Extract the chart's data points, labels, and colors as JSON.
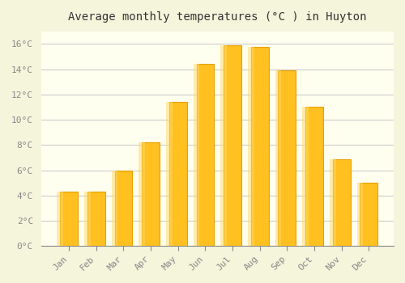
{
  "title": "Average monthly temperatures (°C ) in Huyton",
  "months": [
    "Jan",
    "Feb",
    "Mar",
    "Apr",
    "May",
    "Jun",
    "Jul",
    "Aug",
    "Sep",
    "Oct",
    "Nov",
    "Dec"
  ],
  "temperatures": [
    4.3,
    4.3,
    6.0,
    8.2,
    11.4,
    14.4,
    15.9,
    15.8,
    13.9,
    11.0,
    6.9,
    5.0
  ],
  "bar_color": "#FFC020",
  "bar_edge_color": "#E8A000",
  "background_color": "#F5F5DC",
  "plot_bg_color": "#FFFFF0",
  "grid_color": "#CCCCCC",
  "tick_label_color": "#888888",
  "title_color": "#333333",
  "ylim": [
    0,
    17
  ],
  "yticks": [
    0,
    2,
    4,
    6,
    8,
    10,
    12,
    14,
    16
  ]
}
